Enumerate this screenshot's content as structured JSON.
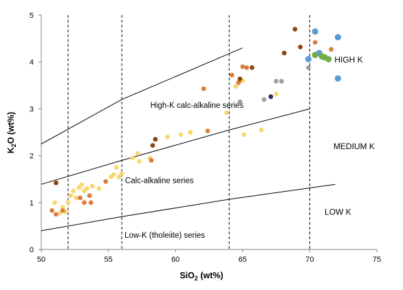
{
  "chart_data": {
    "type": "scatter",
    "xlabel": "SiO2 (wt%)",
    "xlabel_main": "SiO",
    "xlabel_sub": "2",
    "xlabel_rest": " (wt%)",
    "ylabel_main": "K",
    "ylabel_sub": "2",
    "ylabel_rest": "O  (wt%)",
    "xlim": [
      50,
      75
    ],
    "ylim": [
      0,
      5
    ],
    "xticks": [
      "50",
      "55",
      "60",
      "65",
      "70",
      "75"
    ],
    "yticks": [
      "0",
      "1",
      "2",
      "3",
      "4",
      "5"
    ],
    "grid": false,
    "divider_x": [
      52,
      56,
      64,
      70
    ],
    "boundaries": [
      {
        "points": [
          [
            50,
            0.4
          ],
          [
            56,
            0.7
          ],
          [
            64,
            1.07
          ],
          [
            71.9,
            1.39
          ]
        ]
      },
      {
        "points": [
          [
            50,
            1.39
          ],
          [
            56,
            1.9
          ],
          [
            64,
            2.55
          ],
          [
            70,
            3.0
          ]
        ]
      },
      {
        "points": [
          [
            50,
            2.25
          ],
          [
            56,
            3.2
          ],
          [
            65,
            4.3
          ]
        ]
      }
    ],
    "annotations": [
      {
        "text": "High-K calc-alkaline series",
        "x": 61.6,
        "y": 3.08
      },
      {
        "text": "Calc-alkaline series",
        "x": 58.8,
        "y": 1.47
      },
      {
        "text": "Low-K (tholeiite) series",
        "x": 59.2,
        "y": 0.31
      },
      {
        "text": "HIGH K",
        "x": 72.9,
        "y": 4.05
      },
      {
        "text": "MEDIUM  K",
        "x": 73.3,
        "y": 2.2
      },
      {
        "text": "LOW K",
        "x": 72.1,
        "y": 0.8
      }
    ],
    "series": [
      {
        "color": "#f8d870",
        "points": [
          [
            51.0,
            1.0
          ],
          [
            51.4,
            0.78
          ],
          [
            51.6,
            0.9
          ],
          [
            51.8,
            0.8
          ],
          [
            52.0,
            1.0
          ],
          [
            52.2,
            1.15
          ],
          [
            52.4,
            1.25
          ],
          [
            52.6,
            1.1
          ],
          [
            52.8,
            1.32
          ],
          [
            53.0,
            1.38
          ],
          [
            53.2,
            1.25
          ],
          [
            53.4,
            1.3
          ],
          [
            53.6,
            1.15
          ],
          [
            53.8,
            1.35
          ],
          [
            54.3,
            1.3
          ],
          [
            55.2,
            1.55
          ],
          [
            55.4,
            1.6
          ],
          [
            55.6,
            1.75
          ],
          [
            55.8,
            1.55
          ],
          [
            56.0,
            1.62
          ],
          [
            56.8,
            1.95
          ],
          [
            57.2,
            2.05
          ],
          [
            57.3,
            1.88
          ],
          [
            58.1,
            1.95
          ],
          [
            59.4,
            2.4
          ],
          [
            60.4,
            2.45
          ],
          [
            61.1,
            2.5
          ],
          [
            63.8,
            2.92
          ],
          [
            64.5,
            3.48
          ],
          [
            65.0,
            3.6
          ],
          [
            65.1,
            2.45
          ],
          [
            66.4,
            2.55
          ],
          [
            67.5,
            3.32
          ]
        ]
      },
      {
        "color": "#dc7d3c",
        "points": [
          [
            50.8,
            0.83
          ],
          [
            51.1,
            0.75
          ],
          [
            51.6,
            0.83
          ],
          [
            52.9,
            1.1
          ],
          [
            53.2,
            1.0
          ],
          [
            53.6,
            1.15
          ],
          [
            53.7,
            1.0
          ],
          [
            54.8,
            1.45
          ],
          [
            58.2,
            1.9
          ],
          [
            62.1,
            3.43
          ],
          [
            62.4,
            2.53
          ],
          [
            64.2,
            3.72
          ],
          [
            64.7,
            3.56
          ],
          [
            65.0,
            3.9
          ],
          [
            65.3,
            3.88
          ],
          [
            70.4,
            4.42
          ],
          [
            71.6,
            4.27
          ]
        ]
      },
      {
        "color": "#8b4513",
        "points": [
          [
            51.1,
            1.42
          ],
          [
            58.3,
            2.22
          ],
          [
            58.5,
            2.35
          ],
          [
            64.8,
            3.64
          ],
          [
            65.7,
            3.88
          ],
          [
            68.1,
            4.19
          ],
          [
            68.9,
            4.7
          ],
          [
            69.3,
            4.32
          ]
        ]
      },
      {
        "color": "#a0a0a0",
        "points": [
          [
            64.8,
            3.15
          ],
          [
            66.6,
            3.2
          ],
          [
            67.5,
            3.59
          ],
          [
            67.9,
            3.59
          ],
          [
            69.9,
            3.88
          ]
        ]
      },
      {
        "color": "#1f3864",
        "points": [
          [
            67.1,
            3.26
          ]
        ]
      },
      {
        "color": "#5b9bd5",
        "points": [
          [
            69.9,
            4.06
          ],
          [
            70.4,
            4.65
          ],
          [
            70.7,
            4.19
          ],
          [
            72.1,
            3.65
          ],
          [
            72.1,
            4.53
          ]
        ]
      },
      {
        "color": "#70ad47",
        "points": [
          [
            70.4,
            4.15
          ],
          [
            70.9,
            4.12
          ],
          [
            71.1,
            4.1
          ],
          [
            71.4,
            4.06
          ]
        ]
      }
    ]
  }
}
